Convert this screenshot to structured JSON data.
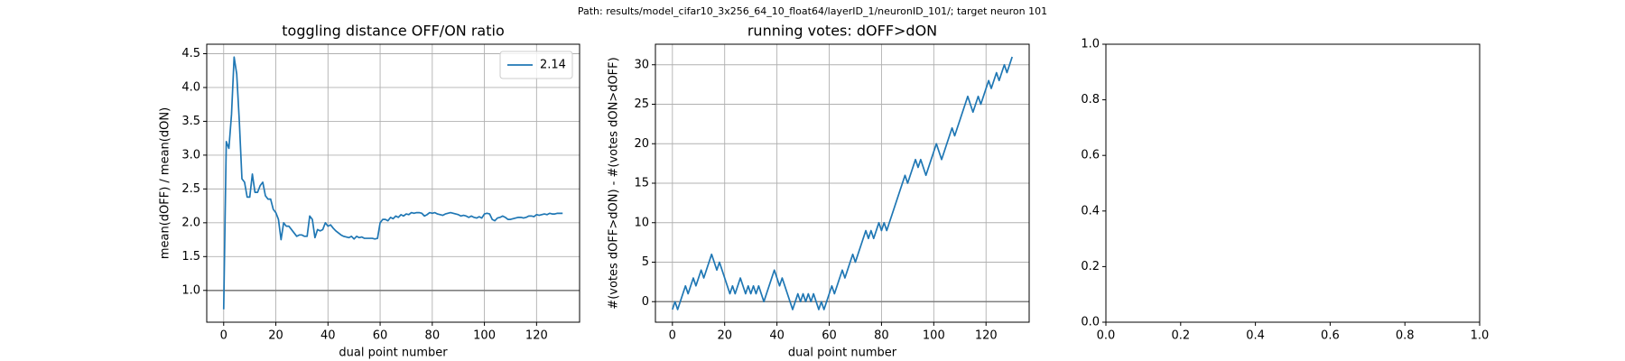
{
  "suptitle": "Path: results/model_cifar10_3x256_64_10_float64/layerID_1/neuronID_101/; target neuron 101",
  "chart_data": [
    {
      "type": "line",
      "title": "toggling distance OFF/ON ratio",
      "xlabel": "dual point number",
      "ylabel": "mean(dOFF) / mean(dON)",
      "xlim": [
        -6.5,
        136.5
      ],
      "ylim": [
        0.53,
        4.64
      ],
      "xticks": [
        0,
        20,
        40,
        60,
        80,
        100,
        120
      ],
      "yticks": [
        {
          "value": 1,
          "label": "1.0"
        },
        {
          "value": 1.5,
          "label": "1.5"
        },
        {
          "value": 2,
          "label": "2.0"
        },
        {
          "value": 2.5,
          "label": "2.5"
        },
        {
          "value": 3,
          "label": "3.0"
        },
        {
          "value": 3.5,
          "label": "3.5"
        },
        {
          "value": 4,
          "label": "4.0"
        },
        {
          "value": 4.5,
          "label": "4.5"
        }
      ],
      "grid": true,
      "hlines": [
        1
      ],
      "hline_color": "#808080",
      "legend": "upper right",
      "series": [
        {
          "name": "2.14",
          "color": "#1f77b4",
          "x": [
            0,
            1,
            2,
            3,
            4,
            5,
            6,
            7,
            8,
            9,
            10,
            11,
            12,
            13,
            14,
            15,
            16,
            17,
            18,
            19,
            20,
            21,
            22,
            23,
            24,
            25,
            26,
            27,
            28,
            29,
            30,
            31,
            32,
            33,
            34,
            35,
            36,
            37,
            38,
            39,
            40,
            41,
            42,
            43,
            44,
            45,
            46,
            47,
            48,
            49,
            50,
            51,
            52,
            53,
            54,
            55,
            56,
            57,
            58,
            59,
            60,
            61,
            62,
            63,
            64,
            65,
            66,
            67,
            68,
            69,
            70,
            71,
            72,
            73,
            74,
            75,
            76,
            77,
            78,
            79,
            80,
            81,
            82,
            83,
            84,
            85,
            86,
            87,
            88,
            89,
            90,
            91,
            92,
            93,
            94,
            95,
            96,
            97,
            98,
            99,
            100,
            101,
            102,
            103,
            104,
            105,
            106,
            107,
            108,
            109,
            110,
            111,
            112,
            113,
            114,
            115,
            116,
            117,
            118,
            119,
            120,
            121,
            122,
            123,
            124,
            125,
            126,
            127,
            128,
            129,
            130
          ],
          "values": [
            0.72,
            3.2,
            3.1,
            3.6,
            4.45,
            4.2,
            3.5,
            2.65,
            2.6,
            2.38,
            2.38,
            2.72,
            2.45,
            2.45,
            2.55,
            2.6,
            2.4,
            2.35,
            2.35,
            2.2,
            2.15,
            2.05,
            1.75,
            2.0,
            1.95,
            1.95,
            1.9,
            1.85,
            1.8,
            1.82,
            1.82,
            1.8,
            1.8,
            2.1,
            2.05,
            1.78,
            1.9,
            1.88,
            1.9,
            2.0,
            1.95,
            1.97,
            1.92,
            1.88,
            1.85,
            1.82,
            1.8,
            1.79,
            1.78,
            1.8,
            1.76,
            1.8,
            1.78,
            1.79,
            1.77,
            1.77,
            1.77,
            1.77,
            1.76,
            1.77,
            2.0,
            2.05,
            2.05,
            2.03,
            2.08,
            2.06,
            2.1,
            2.08,
            2.12,
            2.1,
            2.13,
            2.12,
            2.15,
            2.14,
            2.15,
            2.15,
            2.14,
            2.1,
            2.12,
            2.15,
            2.14,
            2.15,
            2.13,
            2.12,
            2.11,
            2.13,
            2.14,
            2.15,
            2.14,
            2.13,
            2.12,
            2.1,
            2.11,
            2.1,
            2.08,
            2.1,
            2.08,
            2.07,
            2.09,
            2.07,
            2.13,
            2.14,
            2.13,
            2.05,
            2.03,
            2.07,
            2.08,
            2.1,
            2.08,
            2.05,
            2.05,
            2.06,
            2.07,
            2.08,
            2.08,
            2.07,
            2.08,
            2.1,
            2.1,
            2.09,
            2.12,
            2.11,
            2.12,
            2.13,
            2.12,
            2.14,
            2.13,
            2.13,
            2.14,
            2.14,
            2.14
          ]
        }
      ]
    },
    {
      "type": "line",
      "title": "running votes: dOFF>dON",
      "xlabel": "dual point number",
      "ylabel": "#(votes dOFF>dON) - #(votes dON>dOFF)",
      "xlim": [
        -6.5,
        136.5
      ],
      "ylim": [
        -2.6,
        32.6
      ],
      "xticks": [
        0,
        20,
        40,
        60,
        80,
        100,
        120
      ],
      "yticks": [
        0,
        5,
        10,
        15,
        20,
        25,
        30
      ],
      "grid": true,
      "hlines": [
        0
      ],
      "hline_color": "#808080",
      "series": [
        {
          "color": "#1f77b4",
          "x": [
            0,
            1,
            2,
            3,
            4,
            5,
            6,
            7,
            8,
            9,
            10,
            11,
            12,
            13,
            14,
            15,
            16,
            17,
            18,
            19,
            20,
            21,
            22,
            23,
            24,
            25,
            26,
            27,
            28,
            29,
            30,
            31,
            32,
            33,
            34,
            35,
            36,
            37,
            38,
            39,
            40,
            41,
            42,
            43,
            44,
            45,
            46,
            47,
            48,
            49,
            50,
            51,
            52,
            53,
            54,
            55,
            56,
            57,
            58,
            59,
            60,
            61,
            62,
            63,
            64,
            65,
            66,
            67,
            68,
            69,
            70,
            71,
            72,
            73,
            74,
            75,
            76,
            77,
            78,
            79,
            80,
            81,
            82,
            83,
            84,
            85,
            86,
            87,
            88,
            89,
            90,
            91,
            92,
            93,
            94,
            95,
            96,
            97,
            98,
            99,
            100,
            101,
            102,
            103,
            104,
            105,
            106,
            107,
            108,
            109,
            110,
            111,
            112,
            113,
            114,
            115,
            116,
            117,
            118,
            119,
            120,
            121,
            122,
            123,
            124,
            125,
            126,
            127,
            128,
            129,
            130
          ],
          "values": [
            -1,
            0,
            -1,
            0,
            1,
            2,
            1,
            2,
            3,
            2,
            3,
            4,
            3,
            4,
            5,
            6,
            5,
            4,
            5,
            4,
            3,
            2,
            1,
            2,
            1,
            2,
            3,
            2,
            1,
            2,
            1,
            2,
            1,
            2,
            1,
            0,
            1,
            2,
            3,
            4,
            3,
            2,
            3,
            2,
            1,
            0,
            -1,
            0,
            1,
            0,
            1,
            0,
            1,
            0,
            1,
            0,
            -1,
            0,
            -1,
            0,
            1,
            2,
            1,
            2,
            3,
            4,
            3,
            4,
            5,
            6,
            5,
            6,
            7,
            8,
            9,
            8,
            9,
            8,
            9,
            10,
            9,
            10,
            9,
            10,
            11,
            12,
            13,
            14,
            15,
            16,
            15,
            16,
            17,
            18,
            17,
            18,
            17,
            16,
            17,
            18,
            19,
            20,
            19,
            18,
            19,
            20,
            21,
            22,
            21,
            22,
            23,
            24,
            25,
            26,
            25,
            24,
            25,
            26,
            25,
            26,
            27,
            28,
            27,
            28,
            29,
            28,
            29,
            30,
            29,
            30,
            31
          ]
        }
      ]
    },
    {
      "type": "line",
      "xlim": [
        0,
        1
      ],
      "ylim": [
        0,
        1
      ],
      "xticks": [
        {
          "value": 0,
          "label": "0.0"
        },
        {
          "value": 0.2,
          "label": "0.2"
        },
        {
          "value": 0.4,
          "label": "0.4"
        },
        {
          "value": 0.6,
          "label": "0.6"
        },
        {
          "value": 0.8,
          "label": "0.8"
        },
        {
          "value": 1,
          "label": "1.0"
        }
      ],
      "yticks": [
        {
          "value": 0,
          "label": "0.0"
        },
        {
          "value": 0.2,
          "label": "0.2"
        },
        {
          "value": 0.4,
          "label": "0.4"
        },
        {
          "value": 0.6,
          "label": "0.6"
        },
        {
          "value": 0.8,
          "label": "0.8"
        },
        {
          "value": 1,
          "label": "1.0"
        }
      ],
      "grid": false,
      "series": []
    }
  ]
}
